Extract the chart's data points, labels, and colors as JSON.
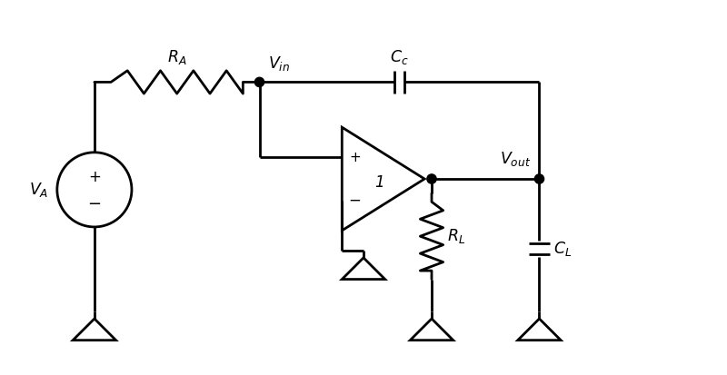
{
  "bg_color": "#ffffff",
  "line_color": "#000000",
  "line_width": 2.0,
  "fig_width": 8.0,
  "fig_height": 4.13,
  "dpi": 100,
  "xlim": [
    0,
    10
  ],
  "ylim": [
    0,
    5.16
  ]
}
